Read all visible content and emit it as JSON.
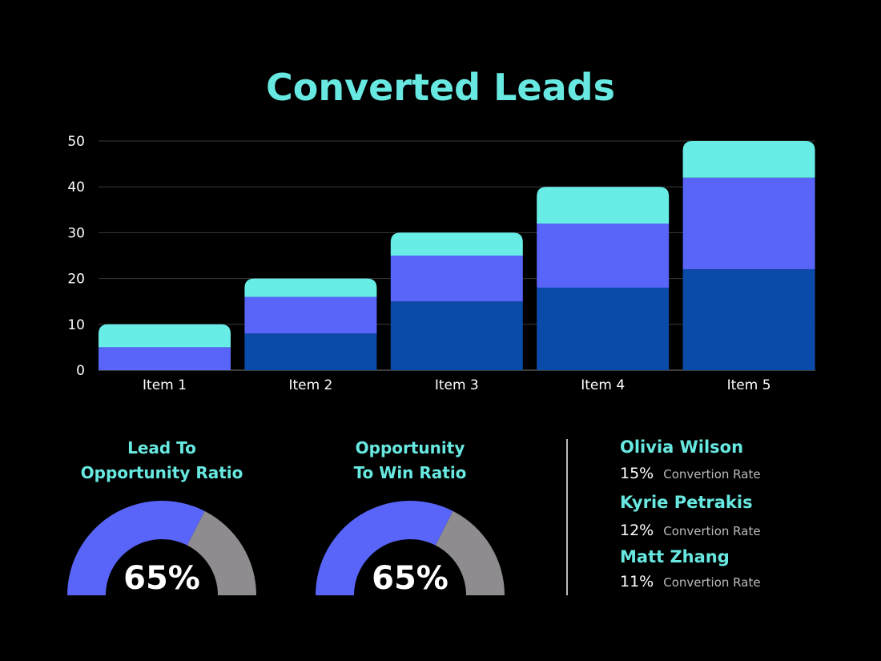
{
  "chart_data": {
    "type": "bar",
    "stacked": true,
    "title": "Converted Leads",
    "categories": [
      "Item 1",
      "Item 2",
      "Item 3",
      "Item 4",
      "Item 5"
    ],
    "series": [
      {
        "values": [
          0,
          8,
          15,
          18,
          22
        ],
        "color": "#0a4aa8"
      },
      {
        "values": [
          5,
          8,
          10,
          14,
          20
        ],
        "color": "#5865f8"
      },
      {
        "values": [
          5,
          4,
          5,
          8,
          8
        ],
        "color": "#67ede6"
      }
    ],
    "ylim": [
      0,
      50
    ],
    "yticks": [
      0,
      10,
      20,
      30,
      40,
      50
    ],
    "grid": true
  },
  "gauges": [
    {
      "title_line1": "Lead To",
      "title_line2": "Opportunity Ratio",
      "value": 65,
      "label": "65%"
    },
    {
      "title_line1": "Opportunity",
      "title_line2": "To Win Ratio",
      "value": 65,
      "label": "65%"
    }
  ],
  "gauge_colors": {
    "fill": "#5865f8",
    "rest": "#8e8c8f"
  },
  "people": [
    {
      "name": "Olivia Wilson",
      "rate": "15%",
      "label": "Convertion Rate"
    },
    {
      "name": "Kyrie Petrakis",
      "rate": "12%",
      "label": "Convertion Rate"
    },
    {
      "name": "Matt Zhang",
      "rate": "11%",
      "label": "Convertion Rate"
    }
  ]
}
